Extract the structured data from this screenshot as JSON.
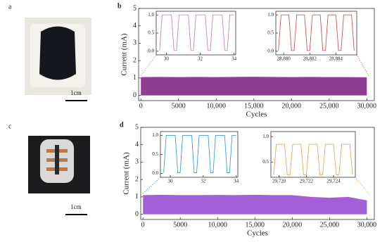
{
  "photos": [
    {
      "label": "a",
      "scale_bar": "1cm"
    },
    {
      "label": "c",
      "scale_bar": "1cm"
    }
  ],
  "chart_data": [
    {
      "type": "area",
      "label": "b",
      "x_label": "Cycles",
      "y_label": "Current (mA)",
      "color": "#8e3d92",
      "xlim": [
        -300,
        31000
      ],
      "xticks": [
        0,
        5000,
        {
          "value": 10000,
          "label": "10,000"
        },
        {
          "value": 15000,
          "label": "15,000"
        },
        {
          "value": 20000,
          "label": "20,000"
        },
        {
          "value": 25000,
          "label": "25,000"
        },
        {
          "value": 30000,
          "label": "30,000"
        }
      ],
      "ylim": [
        -0.3,
        5
      ],
      "yticks": [
        0,
        1,
        2,
        3,
        4,
        5
      ],
      "x": [
        0,
        2500,
        5000,
        7500,
        10000,
        12500,
        15000,
        17500,
        20000,
        22500,
        25000,
        27500,
        30000
      ],
      "values": [
        1.05,
        1.06,
        1.05,
        1.06,
        1.05,
        1.06,
        1.07,
        1.06,
        1.05,
        1.06,
        1.05,
        1.05,
        1.04
      ],
      "insets": [
        {
          "type": "line",
          "color": "#d27fc6",
          "xlim": [
            29.4,
            34.1
          ],
          "xticks": [
            30,
            32,
            34
          ],
          "ylim": [
            -0.1,
            1.1
          ],
          "yticks": [
            {
              "value": 0,
              "label": "0.0"
            },
            0.5,
            {
              "value": 1,
              "label": "1.0"
            }
          ],
          "x": [
            29.6,
            29.75,
            30.3,
            30.45,
            30.6,
            30.75,
            31.3,
            31.45,
            31.6,
            31.75,
            32.3,
            32.45,
            32.6,
            32.75,
            33.3,
            33.45,
            33.6,
            33.75,
            34.0
          ],
          "values": [
            0.02,
            1.0,
            1.0,
            0.02,
            0.02,
            1.0,
            1.0,
            0.02,
            0.02,
            1.0,
            1.0,
            0.02,
            0.02,
            1.0,
            1.0,
            0.02,
            0.02,
            1.0,
            1.0
          ]
        },
        {
          "type": "line",
          "color": "#e05050",
          "xlim": [
            28879.4,
            28885.6
          ],
          "xticks": [
            {
              "value": 28880,
              "label": "28,880"
            },
            {
              "value": 28882,
              "label": "28,882"
            },
            {
              "value": 28884,
              "label": "28,884"
            }
          ],
          "ylim": [
            -0.1,
            1.1
          ],
          "yticks": [
            {
              "value": 0,
              "label": "0.0"
            },
            0.5,
            {
              "value": 1,
              "label": "1.0"
            }
          ],
          "x": [
            28879.6,
            28879.8,
            28880.4,
            28880.6,
            28880.8,
            28881.0,
            28881.6,
            28881.8,
            28882.0,
            28882.2,
            28882.8,
            28883.0,
            28883.2,
            28883.4,
            28884.0,
            28884.2,
            28884.4,
            28884.6,
            28885.2,
            28885.4
          ],
          "values": [
            0.02,
            1.0,
            1.0,
            0.02,
            0.02,
            1.0,
            1.0,
            0.02,
            0.02,
            1.0,
            1.0,
            0.02,
            0.02,
            1.0,
            1.0,
            0.02,
            0.02,
            1.0,
            1.0,
            0.02
          ]
        }
      ]
    },
    {
      "type": "area",
      "label": "d",
      "x_label": "Cycles",
      "y_label": "Current (mA)",
      "color": "#a45fd8",
      "xlim": [
        -300,
        31000
      ],
      "xticks": [
        0,
        5000,
        {
          "value": 10000,
          "label": "10,000"
        },
        {
          "value": 15000,
          "label": "15,000"
        },
        {
          "value": 20000,
          "label": "20,000"
        },
        {
          "value": 25000,
          "label": "25,000"
        },
        {
          "value": 30000,
          "label": "30,000"
        }
      ],
      "ylim": [
        -0.3,
        5
      ],
      "yticks": [
        0,
        1,
        2,
        3,
        4,
        5
      ],
      "x": [
        0,
        2500,
        5000,
        7500,
        10000,
        12500,
        15000,
        17500,
        20000,
        22500,
        25000,
        27500,
        30000
      ],
      "values": [
        1.1,
        1.12,
        1.1,
        1.1,
        1.11,
        1.1,
        1.12,
        1.1,
        1.1,
        1.0,
        0.95,
        1.0,
        0.8
      ],
      "insets": [
        {
          "type": "line",
          "color": "#3a9fe0",
          "xlim": [
            29.4,
            34.1
          ],
          "xticks": [
            30,
            32,
            34
          ],
          "ylim": [
            -0.1,
            1.1
          ],
          "yticks": [
            {
              "value": 0,
              "label": "0.0"
            },
            0.5,
            {
              "value": 1,
              "label": "1.0"
            }
          ],
          "x": [
            29.6,
            29.75,
            30.3,
            30.45,
            30.6,
            30.75,
            31.3,
            31.45,
            31.6,
            31.75,
            32.3,
            32.45,
            32.6,
            32.75,
            33.3,
            33.45,
            33.6,
            33.75,
            34.0
          ],
          "values": [
            0.02,
            1.0,
            1.0,
            0.02,
            0.02,
            1.0,
            1.0,
            0.02,
            0.02,
            1.0,
            1.0,
            0.02,
            0.02,
            1.0,
            1.0,
            0.02,
            0.02,
            1.0,
            1.0
          ]
        },
        {
          "type": "line",
          "color": "#f0a060",
          "xlim": [
            29719.4,
            29725.6
          ],
          "xticks": [
            {
              "value": 29720,
              "label": "29,720"
            },
            {
              "value": 29722,
              "label": "29,722"
            },
            {
              "value": 29724,
              "label": "29,724"
            }
          ],
          "ylim": [
            0.2,
            1.1
          ],
          "yticks": [
            0.5,
            {
              "value": 1,
              "label": "1.0"
            }
          ],
          "x": [
            29719.6,
            29719.8,
            29720.4,
            29720.6,
            29720.8,
            29721.0,
            29721.6,
            29721.8,
            29722.0,
            29722.2,
            29722.8,
            29723.0,
            29723.2,
            29723.4,
            29724.0,
            29724.2,
            29724.4,
            29724.6,
            29725.2,
            29725.4
          ],
          "values": [
            0.25,
            0.85,
            0.85,
            0.25,
            0.25,
            0.85,
            0.85,
            0.25,
            0.25,
            0.85,
            0.85,
            0.25,
            0.25,
            0.85,
            0.85,
            0.25,
            0.25,
            0.85,
            0.85,
            0.25
          ]
        }
      ]
    }
  ]
}
